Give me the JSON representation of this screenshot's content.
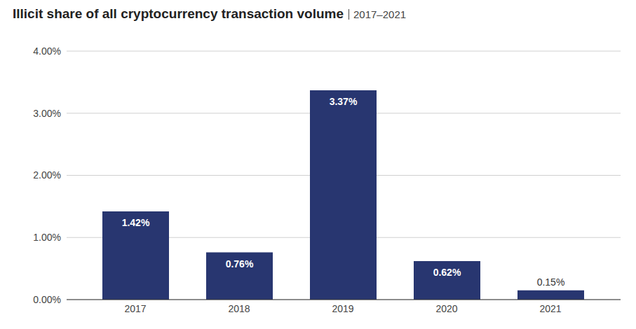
{
  "chart_data": {
    "type": "bar",
    "title": "Illicit share of all cryptocurrency transaction volume",
    "subtitle": "2017–2021",
    "categories": [
      "2017",
      "2018",
      "2019",
      "2020",
      "2021"
    ],
    "values": [
      1.42,
      0.76,
      3.37,
      0.62,
      0.15
    ],
    "value_labels": [
      "1.42%",
      "0.76%",
      "3.37%",
      "0.62%",
      "0.15%"
    ],
    "color": "#283670",
    "ylim": [
      0,
      4
    ],
    "yticks": [
      {
        "value": 0,
        "label": "0.00%"
      },
      {
        "value": 1,
        "label": "1.00%"
      },
      {
        "value": 2,
        "label": "2.00%"
      },
      {
        "value": 3,
        "label": "3.00%"
      },
      {
        "value": 4,
        "label": "4.00%"
      }
    ],
    "grid": true,
    "data_labels": true
  }
}
